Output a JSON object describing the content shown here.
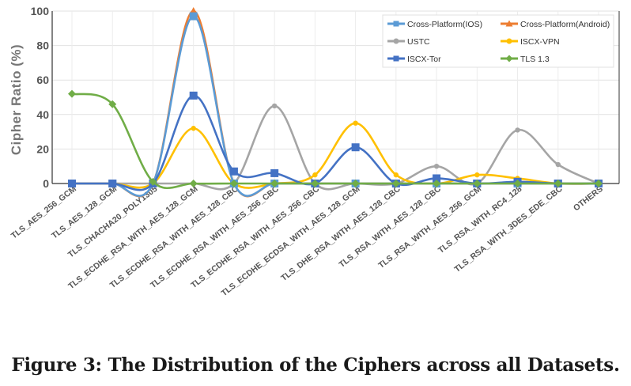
{
  "chart_data": {
    "type": "line",
    "title": "",
    "xlabel": "",
    "ylabel": "Cipher  Ratio  (%)",
    "ylim": [
      0,
      100
    ],
    "yticks": [
      0,
      20,
      40,
      60,
      80,
      100
    ],
    "grid": true,
    "legend_position": "top-right",
    "categories": [
      "TLS_AES_256_GCM",
      "TLS_AES_128_GCM",
      "TLS_CHACHA20_POLY1305",
      "TLS_ECDHE_RSA_WITH_AES_128_GCM",
      "TLS_ECDHE_RSA_WITH_AES_128_CBC",
      "TLS_ECDHE_RSA_WITH_AES_256_CBC",
      "TLS_ECDHE_RSA_WITH_AES_256_CBC",
      "TLS_ECDHE_ECDSA_WITH_AES_128_GCM",
      "TLS_DHE_RSA_WITH_AES_128_CBC",
      "TLS_RSA_WITH_AES_128_CBC",
      "TLS_RSA_WITH_AES_256_GCM",
      "TLS_RSA_WITH_RC4_128",
      "TLS_RSA_WITH_3DES_EDE_CBC",
      "OTHERS"
    ],
    "series": [
      {
        "name": "Cross-Platform(IOS)",
        "color": "#5b9bd5",
        "marker": "square",
        "values": [
          0,
          0,
          0,
          97,
          0,
          0,
          0,
          0,
          0,
          0,
          0,
          0,
          0,
          0
        ]
      },
      {
        "name": "Cross-Platform(Android)",
        "color": "#ed7d31",
        "marker": "triangle",
        "values": [
          0,
          0,
          0,
          100,
          0,
          0,
          0,
          0,
          0,
          0,
          0,
          0,
          0,
          0
        ]
      },
      {
        "name": "USTC",
        "color": "#a5a5a5",
        "marker": "circle",
        "values": [
          0,
          0,
          0,
          0,
          0,
          45,
          0,
          0,
          0,
          10,
          0,
          31,
          11,
          0
        ]
      },
      {
        "name": "ISCX-VPN",
        "color": "#ffc000",
        "marker": "circle",
        "values": [
          0,
          0,
          0,
          32,
          0,
          0,
          5,
          35,
          5,
          0,
          5,
          3,
          0,
          0
        ]
      },
      {
        "name": "ISCX-Tor",
        "color": "#4472c4",
        "marker": "square",
        "values": [
          0,
          0,
          0,
          51,
          7,
          6,
          0,
          21,
          0,
          3,
          0,
          1,
          0,
          0
        ]
      },
      {
        "name": "TLS  1.3",
        "color": "#70ad47",
        "marker": "diamond",
        "values": [
          52,
          46,
          1,
          0,
          0,
          0,
          0,
          0,
          0,
          0,
          0,
          0,
          0,
          0
        ]
      }
    ]
  },
  "caption": "Figure 3: The Distribution of the Ciphers across all Datasets."
}
